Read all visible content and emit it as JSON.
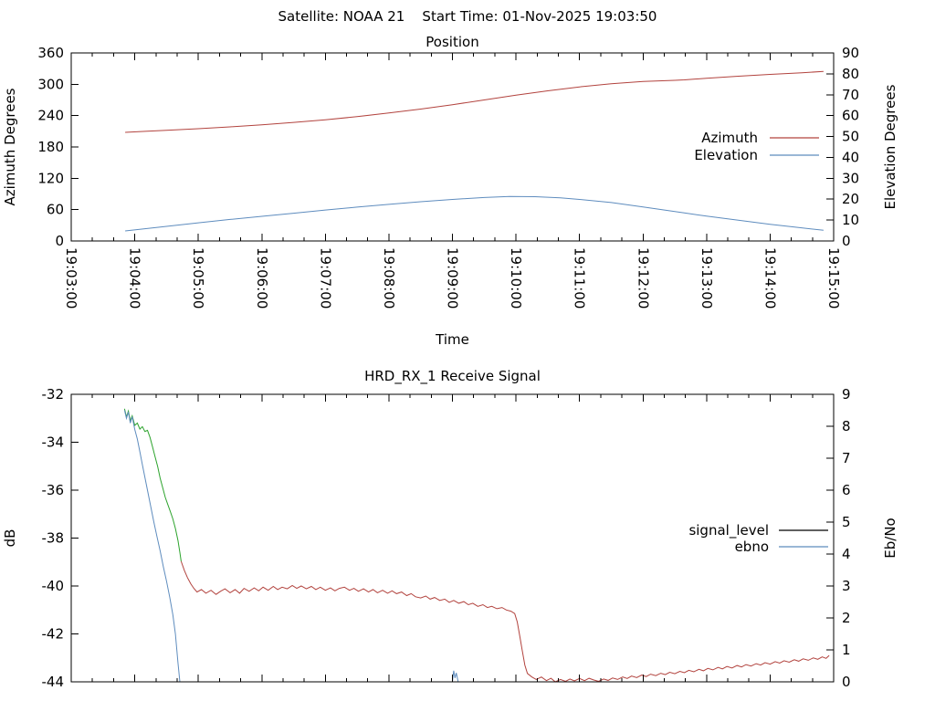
{
  "header": {
    "title": "Satellite: NOAA 21    Start Time: 01-Nov-2025 19:03:50"
  },
  "colors": {
    "azimuth_red": "#b2433e",
    "steel_blue": "#5e8cbe",
    "lock_green": "#2ca32c",
    "legend_black": "#000000",
    "axis": "#000000",
    "background": "#ffffff"
  },
  "chart_data": [
    {
      "type": "line",
      "title": "Position",
      "xlabel": "Time",
      "x_range": [
        0,
        12
      ],
      "x_tick_labels": [
        "19:03:00",
        "19:04:00",
        "19:05:00",
        "19:06:00",
        "19:07:00",
        "19:08:00",
        "19:09:00",
        "19:10:00",
        "19:11:00",
        "19:12:00",
        "19:13:00",
        "19:14:00",
        "19:15:00"
      ],
      "x_minor_per_major": 2,
      "grid": false,
      "legend_position": "inside-right",
      "y_left": {
        "title": "Azimuth Degrees",
        "min": 0,
        "max": 360,
        "step": 60
      },
      "y_right": {
        "title": "Elevation Degrees",
        "min": 0,
        "max": 90,
        "step": 10
      },
      "legend": [
        {
          "label": "Azimuth",
          "color": "#b2433e"
        },
        {
          "label": "Elevation",
          "color": "#5e8cbe"
        }
      ],
      "series": [
        {
          "name": "Azimuth",
          "axis": "left",
          "color": "#b2433e",
          "points": [
            [
              0.85,
              208
            ],
            [
              1.2,
              210
            ],
            [
              1.5,
              212
            ],
            [
              2,
              215
            ],
            [
              2.5,
              218.5
            ],
            [
              3,
              222.5
            ],
            [
              3.5,
              227
            ],
            [
              4,
              232
            ],
            [
              4.5,
              238
            ],
            [
              5,
              245
            ],
            [
              5.5,
              252.5
            ],
            [
              6,
              261
            ],
            [
              6.5,
              270
            ],
            [
              7,
              279
            ],
            [
              7.5,
              287.5
            ],
            [
              8,
              295
            ],
            [
              8.5,
              301
            ],
            [
              9,
              305.5
            ],
            [
              9.5,
              307.5
            ],
            [
              9.65,
              308.5
            ],
            [
              10,
              311.5
            ],
            [
              10.5,
              315.5
            ],
            [
              11,
              319
            ],
            [
              11.5,
              322
            ],
            [
              11.84,
              324.5
            ]
          ]
        },
        {
          "name": "Elevation",
          "axis": "right",
          "color": "#5e8cbe",
          "points": [
            [
              0.85,
              4.8
            ],
            [
              1.5,
              7.0
            ],
            [
              2,
              8.7
            ],
            [
              2.5,
              10.3
            ],
            [
              3,
              11.8
            ],
            [
              3.5,
              13.3
            ],
            [
              4,
              14.8
            ],
            [
              4.5,
              16.2
            ],
            [
              5,
              17.5
            ],
            [
              5.5,
              18.8
            ],
            [
              6,
              19.9
            ],
            [
              6.5,
              20.8
            ],
            [
              6.9,
              21.3
            ],
            [
              7.3,
              21.2
            ],
            [
              7.7,
              20.6
            ],
            [
              8,
              19.9
            ],
            [
              8.5,
              18.4
            ],
            [
              9,
              16.3
            ],
            [
              9.65,
              13.4
            ],
            [
              10,
              11.9
            ],
            [
              10.5,
              9.9
            ],
            [
              11,
              8.0
            ],
            [
              11.4,
              6.6
            ],
            [
              11.84,
              5.1
            ]
          ]
        }
      ]
    },
    {
      "type": "line",
      "title": "HRD_RX_1 Receive Signal",
      "xlabel": "",
      "x_range": [
        0,
        12
      ],
      "x_tick_labels": [],
      "x_minor_per_major": 2,
      "grid": false,
      "legend_position": "inside-right",
      "y_left": {
        "title": "dB",
        "min": -44,
        "max": -32,
        "step": 2
      },
      "y_right": {
        "title": "Eb/No",
        "min": 0,
        "max": 9,
        "step": 1
      },
      "legend": [
        {
          "label": "signal_level",
          "color": "#000000"
        },
        {
          "label": "ebno",
          "color": "#5e8cbe"
        }
      ],
      "series": [
        {
          "name": "signal_level_acquire",
          "axis": "left",
          "color": "#2ca32c",
          "points": [
            [
              0.84,
              -32.6
            ],
            [
              0.87,
              -32.95
            ],
            [
              0.9,
              -32.7
            ],
            [
              0.93,
              -33.1
            ],
            [
              0.96,
              -32.9
            ],
            [
              1.0,
              -33.3
            ],
            [
              1.04,
              -33.2
            ],
            [
              1.08,
              -33.45
            ],
            [
              1.12,
              -33.35
            ],
            [
              1.16,
              -33.55
            ],
            [
              1.2,
              -33.5
            ],
            [
              1.24,
              -33.8
            ],
            [
              1.28,
              -34.2
            ],
            [
              1.32,
              -34.6
            ],
            [
              1.36,
              -35.0
            ],
            [
              1.4,
              -35.5
            ],
            [
              1.44,
              -35.9
            ],
            [
              1.48,
              -36.3
            ],
            [
              1.52,
              -36.6
            ],
            [
              1.56,
              -36.9
            ],
            [
              1.6,
              -37.2
            ],
            [
              1.64,
              -37.6
            ],
            [
              1.68,
              -38.1
            ],
            [
              1.71,
              -38.6
            ],
            [
              1.73,
              -38.97
            ]
          ]
        },
        {
          "name": "signal_level",
          "axis": "left",
          "color": "#b2433e",
          "points": [
            [
              1.73,
              -38.97
            ],
            [
              1.78,
              -39.35
            ],
            [
              1.83,
              -39.65
            ],
            [
              1.88,
              -39.9
            ],
            [
              1.93,
              -40.1
            ],
            [
              1.98,
              -40.25
            ],
            [
              2.05,
              -40.15
            ],
            [
              2.12,
              -40.3
            ],
            [
              2.2,
              -40.18
            ],
            [
              2.28,
              -40.35
            ],
            [
              2.35,
              -40.22
            ],
            [
              2.42,
              -40.12
            ],
            [
              2.5,
              -40.28
            ],
            [
              2.58,
              -40.15
            ],
            [
              2.65,
              -40.3
            ],
            [
              2.72,
              -40.1
            ],
            [
              2.8,
              -40.22
            ],
            [
              2.88,
              -40.08
            ],
            [
              2.95,
              -40.2
            ],
            [
              3.02,
              -40.05
            ],
            [
              3.1,
              -40.18
            ],
            [
              3.18,
              -40.02
            ],
            [
              3.25,
              -40.15
            ],
            [
              3.32,
              -40.05
            ],
            [
              3.4,
              -40.12
            ],
            [
              3.48,
              -39.98
            ],
            [
              3.55,
              -40.1
            ],
            [
              3.62,
              -40.0
            ],
            [
              3.7,
              -40.12
            ],
            [
              3.78,
              -40.02
            ],
            [
              3.85,
              -40.15
            ],
            [
              3.92,
              -40.05
            ],
            [
              4.0,
              -40.18
            ],
            [
              4.08,
              -40.08
            ],
            [
              4.15,
              -40.2
            ],
            [
              4.22,
              -40.1
            ],
            [
              4.3,
              -40.05
            ],
            [
              4.38,
              -40.18
            ],
            [
              4.45,
              -40.1
            ],
            [
              4.52,
              -40.22
            ],
            [
              4.6,
              -40.12
            ],
            [
              4.68,
              -40.25
            ],
            [
              4.75,
              -40.15
            ],
            [
              4.82,
              -40.28
            ],
            [
              4.9,
              -40.18
            ],
            [
              4.98,
              -40.3
            ],
            [
              5.05,
              -40.2
            ],
            [
              5.12,
              -40.32
            ],
            [
              5.2,
              -40.25
            ],
            [
              5.28,
              -40.4
            ],
            [
              5.35,
              -40.32
            ],
            [
              5.42,
              -40.45
            ],
            [
              5.5,
              -40.5
            ],
            [
              5.58,
              -40.42
            ],
            [
              5.65,
              -40.55
            ],
            [
              5.72,
              -40.48
            ],
            [
              5.8,
              -40.6
            ],
            [
              5.88,
              -40.55
            ],
            [
              5.95,
              -40.68
            ],
            [
              6.02,
              -40.6
            ],
            [
              6.1,
              -40.72
            ],
            [
              6.18,
              -40.65
            ],
            [
              6.25,
              -40.78
            ],
            [
              6.32,
              -40.72
            ],
            [
              6.4,
              -40.85
            ],
            [
              6.48,
              -40.78
            ],
            [
              6.55,
              -40.9
            ],
            [
              6.62,
              -40.85
            ],
            [
              6.7,
              -40.95
            ],
            [
              6.78,
              -40.9
            ],
            [
              6.85,
              -41.0
            ],
            [
              6.92,
              -41.05
            ],
            [
              6.98,
              -41.15
            ],
            [
              7.02,
              -41.5
            ],
            [
              7.06,
              -42.1
            ],
            [
              7.1,
              -42.7
            ],
            [
              7.14,
              -43.3
            ],
            [
              7.18,
              -43.65
            ],
            [
              7.25,
              -43.8
            ],
            [
              7.32,
              -43.9
            ],
            [
              7.4,
              -43.8
            ],
            [
              7.48,
              -43.95
            ],
            [
              7.55,
              -43.85
            ],
            [
              7.62,
              -44.0
            ],
            [
              7.7,
              -43.9
            ],
            [
              7.78,
              -43.98
            ],
            [
              7.85,
              -43.88
            ],
            [
              7.92,
              -43.96
            ],
            [
              8.0,
              -43.86
            ],
            [
              8.08,
              -43.95
            ],
            [
              8.15,
              -43.85
            ],
            [
              8.22,
              -43.92
            ],
            [
              8.3,
              -43.98
            ],
            [
              8.38,
              -43.88
            ],
            [
              8.45,
              -43.94
            ],
            [
              8.52,
              -43.84
            ],
            [
              8.6,
              -43.9
            ],
            [
              8.68,
              -43.8
            ],
            [
              8.75,
              -43.86
            ],
            [
              8.82,
              -43.76
            ],
            [
              8.9,
              -43.82
            ],
            [
              8.98,
              -43.72
            ],
            [
              9.05,
              -43.78
            ],
            [
              9.12,
              -43.68
            ],
            [
              9.2,
              -43.74
            ],
            [
              9.28,
              -43.64
            ],
            [
              9.35,
              -43.7
            ],
            [
              9.42,
              -43.6
            ],
            [
              9.5,
              -43.66
            ],
            [
              9.58,
              -43.56
            ],
            [
              9.65,
              -43.62
            ],
            [
              9.72,
              -43.52
            ],
            [
              9.8,
              -43.58
            ],
            [
              9.88,
              -43.48
            ],
            [
              9.95,
              -43.54
            ],
            [
              10.02,
              -43.44
            ],
            [
              10.1,
              -43.5
            ],
            [
              10.18,
              -43.4
            ],
            [
              10.25,
              -43.46
            ],
            [
              10.32,
              -43.36
            ],
            [
              10.4,
              -43.42
            ],
            [
              10.48,
              -43.32
            ],
            [
              10.55,
              -43.38
            ],
            [
              10.62,
              -43.28
            ],
            [
              10.7,
              -43.34
            ],
            [
              10.78,
              -43.24
            ],
            [
              10.85,
              -43.3
            ],
            [
              10.92,
              -43.2
            ],
            [
              11.0,
              -43.26
            ],
            [
              11.08,
              -43.16
            ],
            [
              11.15,
              -43.22
            ],
            [
              11.22,
              -43.12
            ],
            [
              11.3,
              -43.18
            ],
            [
              11.38,
              -43.08
            ],
            [
              11.45,
              -43.14
            ],
            [
              11.52,
              -43.04
            ],
            [
              11.6,
              -43.1
            ],
            [
              11.68,
              -43.0
            ],
            [
              11.75,
              -43.06
            ],
            [
              11.82,
              -42.96
            ],
            [
              11.88,
              -43.02
            ],
            [
              11.93,
              -42.9
            ]
          ]
        },
        {
          "name": "ebno",
          "axis": "right",
          "color": "#5e8cbe",
          "points": [
            [
              0.84,
              8.5
            ],
            [
              0.87,
              8.25
            ],
            [
              0.9,
              8.45
            ],
            [
              0.93,
              8.1
            ],
            [
              0.96,
              8.3
            ],
            [
              1.0,
              7.9
            ],
            [
              1.04,
              7.6
            ],
            [
              1.08,
              7.2
            ],
            [
              1.12,
              6.8
            ],
            [
              1.16,
              6.4
            ],
            [
              1.2,
              6.0
            ],
            [
              1.25,
              5.5
            ],
            [
              1.3,
              5.0
            ],
            [
              1.35,
              4.55
            ],
            [
              1.4,
              4.1
            ],
            [
              1.45,
              3.6
            ],
            [
              1.5,
              3.15
            ],
            [
              1.55,
              2.65
            ],
            [
              1.6,
              2.1
            ],
            [
              1.64,
              1.5
            ],
            [
              1.68,
              0.6
            ],
            [
              1.71,
              0
            ],
            [
              6.0,
              0
            ],
            [
              6.02,
              0.35
            ],
            [
              6.04,
              0.12
            ],
            [
              6.06,
              0.28
            ],
            [
              6.09,
              0
            ],
            [
              11.93,
              0
            ]
          ]
        }
      ]
    }
  ]
}
